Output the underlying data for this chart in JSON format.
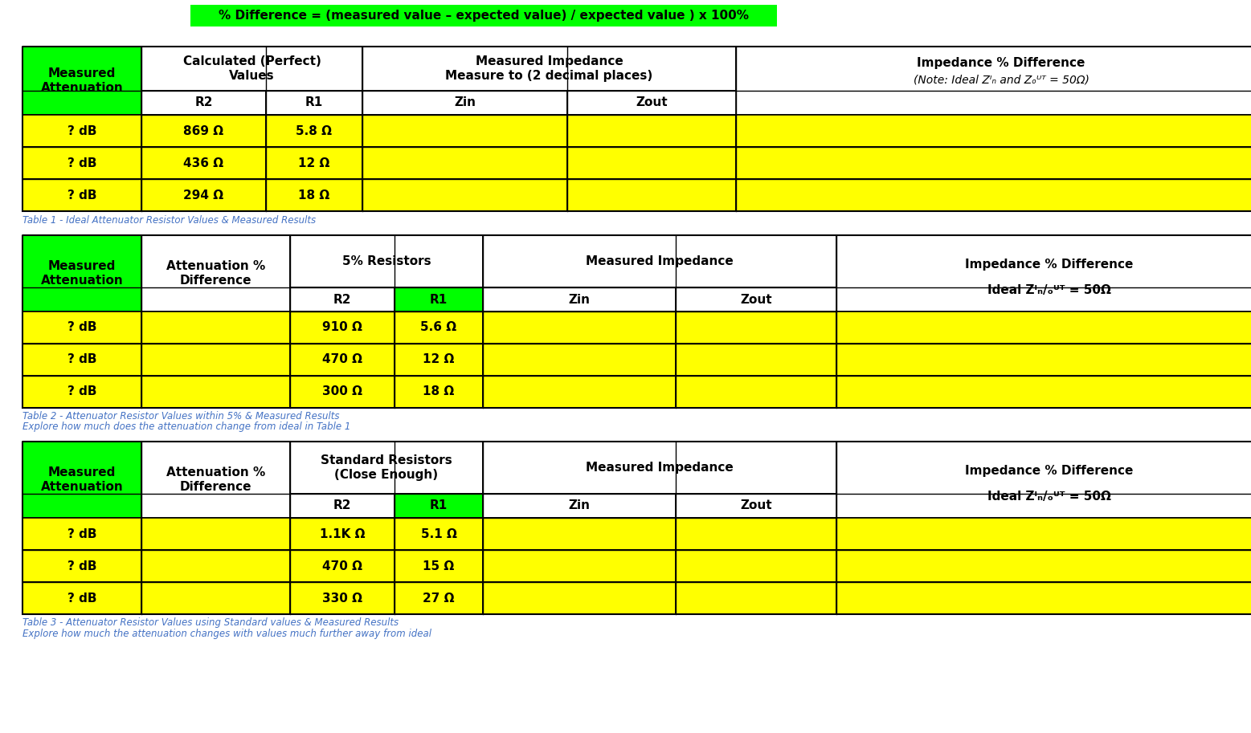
{
  "formula_text": "% Difference = (measured value – expected value) / expected value ) x 100%",
  "formula_bg": "#00FF00",
  "formula_text_color": "#000000",
  "table1_caption": "Table 1 - Ideal Attenuator Resistor Values & Measured Results",
  "table2_caption1": "Table 2 - Attenuator Resistor Values within 5% & Measured Results",
  "table2_caption2": "Explore how much does the attenuation change from ideal in Table 1",
  "table3_caption1": "Table 3 - Attenuator Resistor Values using Standard values & Measured Results",
  "table3_caption2": "Explore how much the attenuation changes with values much further away from ideal",
  "table1_data": [
    [
      "? dB",
      "869 Ω",
      "5.8 Ω",
      "",
      "",
      ""
    ],
    [
      "? dB",
      "436 Ω",
      "12 Ω",
      "",
      "",
      ""
    ],
    [
      "? dB",
      "294 Ω",
      "18 Ω",
      "",
      "",
      ""
    ]
  ],
  "table2_data": [
    [
      "? dB",
      "",
      "910 Ω",
      "5.6 Ω",
      "",
      "",
      ""
    ],
    [
      "? dB",
      "",
      "470 Ω",
      "12 Ω",
      "",
      "",
      ""
    ],
    [
      "? dB",
      "",
      "300 Ω",
      "18 Ω",
      "",
      "",
      ""
    ]
  ],
  "table3_data": [
    [
      "? dB",
      "",
      "1.1K Ω",
      "5.1 Ω",
      "",
      "",
      ""
    ],
    [
      "? dB",
      "",
      "470 Ω",
      "15 Ω",
      "",
      "",
      ""
    ],
    [
      "? dB",
      "",
      "330 Ω",
      "27 Ω",
      "",
      "",
      ""
    ]
  ],
  "green_bg": "#00FF00",
  "yellow_bg": "#FFFF00",
  "white_bg": "#FFFFFF",
  "black_text": "#000000",
  "blue_caption": "#4472C4"
}
